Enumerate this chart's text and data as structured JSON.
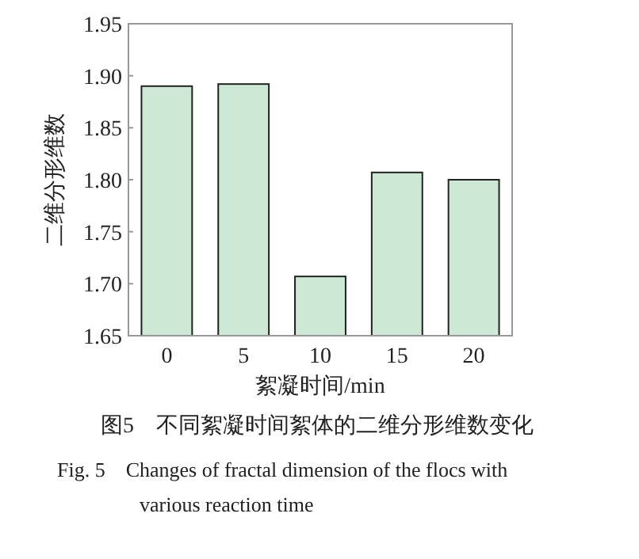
{
  "chart_data": {
    "type": "bar",
    "xlabel": "絮凝时间/min",
    "ylabel": "二维分形维数",
    "categories": [
      "0",
      "5",
      "10",
      "15",
      "20"
    ],
    "values": [
      1.89,
      1.892,
      1.707,
      1.807,
      1.8
    ],
    "color": "#cde8d4",
    "ylim": [
      1.65,
      1.95
    ],
    "yticks": [
      {
        "value": 1.65,
        "label": "1.65"
      },
      {
        "value": 1.7,
        "label": "1.70"
      },
      {
        "value": 1.75,
        "label": "1.75"
      },
      {
        "value": 1.8,
        "label": "1.80"
      },
      {
        "value": 1.85,
        "label": "1.85"
      },
      {
        "value": 1.9,
        "label": "1.90"
      },
      {
        "value": 1.95,
        "label": "1.95"
      }
    ],
    "annotations": [
      "图5　不同絮凝时间絮体的二维分形维数变化",
      "Fig. 5　Changes of fractal dimension of the flocs with various reaction time"
    ]
  }
}
